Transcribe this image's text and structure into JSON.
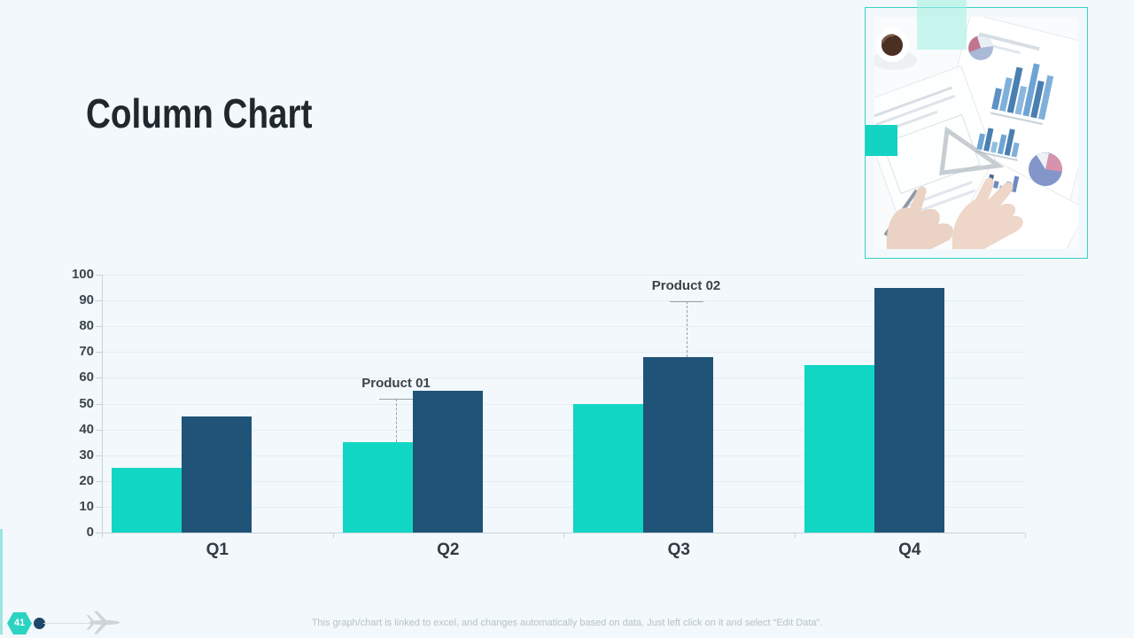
{
  "slide": {
    "title": "Column Chart",
    "page_number": "41",
    "footer": "This graph/chart is linked to excel, and changes automatically based on data. Just left click on it and select “Edit Data”."
  },
  "chart_data": {
    "type": "bar",
    "categories": [
      "Q1",
      "Q2",
      "Q3",
      "Q4"
    ],
    "series": [
      {
        "name": "Product 01",
        "color": "#12d6c4",
        "values": [
          25,
          35,
          50,
          65
        ]
      },
      {
        "name": "Product 02",
        "color": "#1f5377",
        "values": [
          45,
          55,
          68,
          95
        ]
      }
    ],
    "ylim": [
      0,
      100
    ],
    "ytick_step": 10,
    "grid": true,
    "legend": "none",
    "annotations": [
      {
        "label": "Product 01",
        "series_index": 0,
        "category_index": 1,
        "dx": 21,
        "rise": 49
      },
      {
        "label": "Product 02",
        "series_index": 1,
        "category_index": 2,
        "dx": 9,
        "rise": 63
      }
    ]
  },
  "decor": {
    "photo_alt": "desk-with-charts-photo",
    "accent_teal": "#12d6c4",
    "accent_navy": "#1f5377",
    "background": "#f2f8fb"
  }
}
